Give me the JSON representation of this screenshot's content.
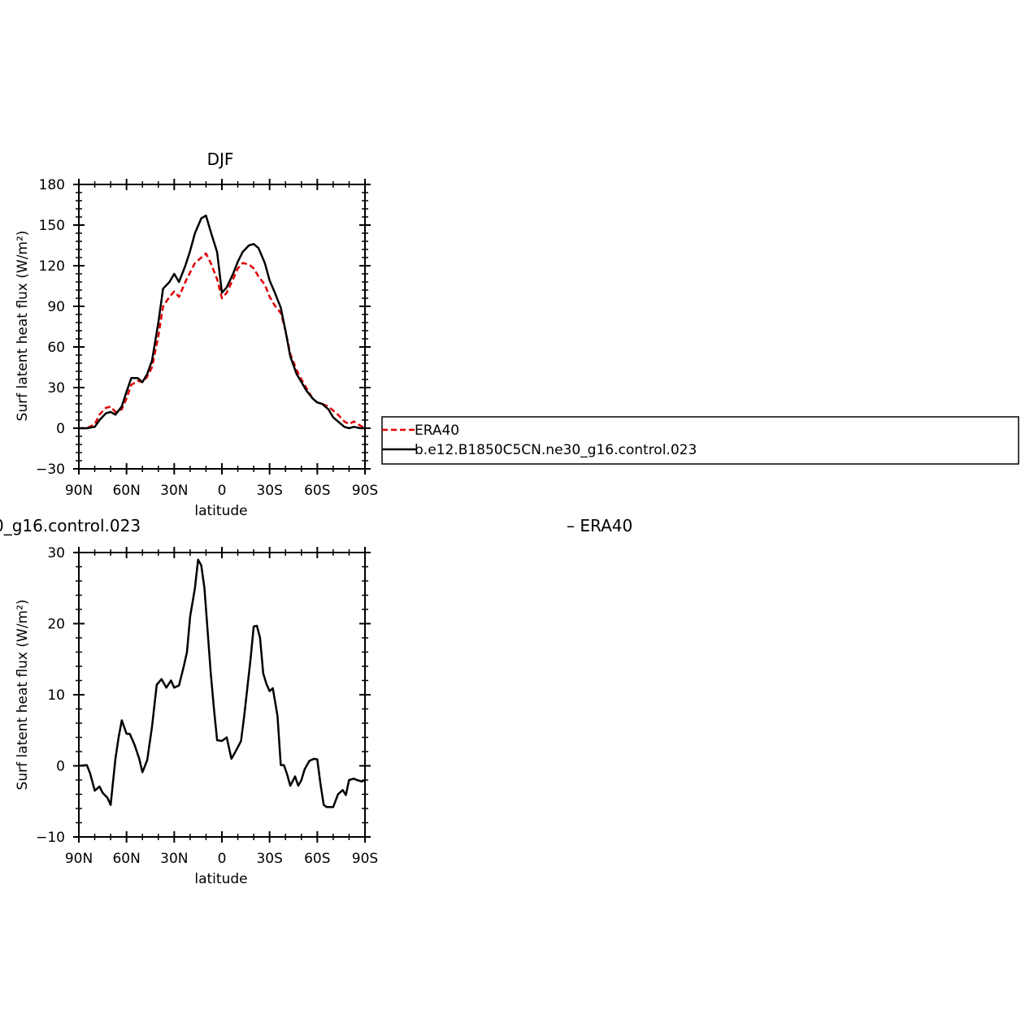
{
  "colors": {
    "era40": "#e00000",
    "model": "#000000"
  },
  "legend": {
    "entries": [
      {
        "label": "ERA40",
        "series": "era40",
        "dash": true
      },
      {
        "label": "b.e12.B1850C5CN.ne30_g16.control.023",
        "series": "model",
        "dash": false
      }
    ]
  },
  "chart_data": [
    {
      "type": "line",
      "title": "DJF",
      "xlabel": "latitude",
      "ylabel": "Surf latent heat flux (W/m²)",
      "xlim": [
        90,
        -90
      ],
      "ylim": [
        -30,
        180
      ],
      "yticks": [
        -30,
        0,
        30,
        60,
        90,
        120,
        150,
        180
      ],
      "xticks": [
        {
          "value": 90,
          "label": "90N"
        },
        {
          "value": 60,
          "label": "60N"
        },
        {
          "value": 30,
          "label": "30N"
        },
        {
          "value": 0,
          "label": "0"
        },
        {
          "value": -30,
          "label": "30S"
        },
        {
          "value": -60,
          "label": "60S"
        },
        {
          "value": -90,
          "label": "90S"
        }
      ],
      "series": [
        {
          "name": "ERA40",
          "key": "era40",
          "x": [
            90,
            85,
            80,
            77,
            73,
            70,
            67,
            63,
            60,
            57,
            53,
            50,
            47,
            44,
            40,
            37,
            33,
            30,
            27,
            23,
            20,
            17,
            13,
            10,
            7,
            3,
            0,
            -3,
            -7,
            -10,
            -13,
            -17,
            -20,
            -23,
            -27,
            -30,
            -33,
            -37,
            -40,
            -43,
            -47,
            -50,
            -53,
            -57,
            -60,
            -63,
            -67,
            -70,
            -73,
            -77,
            -80,
            -83,
            -87,
            -90
          ],
          "values": [
            0,
            0,
            3,
            10,
            15,
            16,
            12,
            14,
            22,
            32,
            35,
            34,
            38,
            45,
            68,
            90,
            97,
            101,
            97,
            108,
            115,
            122,
            126,
            129,
            122,
            110,
            96,
            100,
            110,
            118,
            122,
            121,
            118,
            112,
            106,
            97,
            91,
            85,
            72,
            55,
            43,
            36,
            30,
            22,
            19,
            18,
            16,
            13,
            10,
            5,
            3,
            5,
            2,
            0
          ]
        },
        {
          "name": "b.e12.B1850C5CN.ne30_g16.control.023",
          "key": "model",
          "x": [
            90,
            85,
            80,
            77,
            73,
            70,
            67,
            63,
            60,
            57,
            53,
            50,
            47,
            44,
            40,
            37,
            33,
            30,
            27,
            23,
            20,
            17,
            13,
            10,
            7,
            3,
            0,
            -3,
            -7,
            -10,
            -13,
            -17,
            -20,
            -23,
            -27,
            -30,
            -33,
            -37,
            -40,
            -43,
            -47,
            -50,
            -53,
            -57,
            -60,
            -63,
            -67,
            -70,
            -73,
            -77,
            -80,
            -83,
            -87,
            -90
          ],
          "values": [
            0,
            0,
            1,
            6,
            11,
            12,
            10,
            16,
            27,
            37,
            37,
            34,
            40,
            50,
            78,
            103,
            108,
            114,
            108,
            120,
            131,
            144,
            155,
            157,
            145,
            130,
            100,
            104,
            114,
            123,
            130,
            135,
            136,
            133,
            122,
            109,
            101,
            89,
            72,
            53,
            40,
            34,
            28,
            22,
            19,
            18,
            14,
            8,
            5,
            1,
            0,
            1,
            0,
            0
          ]
        }
      ]
    },
    {
      "type": "line",
      "title": "",
      "subtitle_left": "0_g16.control.023",
      "subtitle_right": "– ERA40",
      "xlabel": "latitude",
      "ylabel": "Surf latent heat flux (W/m²)",
      "xlim": [
        90,
        -90
      ],
      "ylim": [
        -10,
        30
      ],
      "yticks": [
        -10,
        0,
        10,
        20,
        30
      ],
      "xticks": [
        {
          "value": 90,
          "label": "90N"
        },
        {
          "value": 60,
          "label": "60N"
        },
        {
          "value": 30,
          "label": "30N"
        },
        {
          "value": 0,
          "label": "0"
        },
        {
          "value": -30,
          "label": "30S"
        },
        {
          "value": -60,
          "label": "60S"
        },
        {
          "value": -90,
          "label": "90S"
        }
      ],
      "series": [
        {
          "key": "model",
          "x": [
            90,
            85,
            83,
            80,
            77,
            75,
            72,
            70,
            67,
            65,
            63,
            60,
            58,
            55,
            52,
            50,
            47,
            44,
            41,
            38,
            35,
            32,
            30,
            27,
            24,
            22,
            20,
            17,
            15,
            13,
            11,
            9,
            7,
            5,
            3,
            0,
            -3,
            -6,
            -9,
            -12,
            -14,
            -16,
            -18,
            -20,
            -22,
            -24,
            -26,
            -28,
            -30,
            -32,
            -35,
            -37,
            -39,
            -41,
            -43,
            -46,
            -48,
            -50,
            -52,
            -55,
            -58,
            -60,
            -62,
            -64,
            -66,
            -68,
            -70,
            -73,
            -76,
            -78,
            -80,
            -83,
            -85,
            -88,
            -90
          ],
          "values": [
            0,
            0.1,
            -1,
            -3.5,
            -2.9,
            -3.8,
            -4.5,
            -5.5,
            1.0,
            4.0,
            6.4,
            4.5,
            4.5,
            3.0,
            1.0,
            -0.9,
            0.8,
            5.5,
            11.4,
            12.2,
            11.0,
            12.0,
            11.0,
            11.3,
            14.0,
            16.0,
            21.0,
            25.0,
            29.0,
            28.2,
            25.0,
            19.0,
            13.0,
            8.0,
            3.6,
            3.5,
            4.0,
            1.0,
            2.2,
            3.5,
            7.0,
            11.0,
            15.0,
            19.6,
            19.7,
            18.0,
            13.0,
            11.5,
            10.5,
            10.9,
            7.0,
            0.1,
            0.1,
            -1.2,
            -2.8,
            -1.5,
            -2.8,
            -2.0,
            -0.5,
            0.7,
            1.0,
            0.9,
            -2.5,
            -5.5,
            -5.8,
            -5.8,
            -5.8,
            -4.0,
            -3.4,
            -4.1,
            -2.0,
            -1.8,
            -2.0,
            -2.2,
            -2.0
          ]
        }
      ]
    }
  ]
}
